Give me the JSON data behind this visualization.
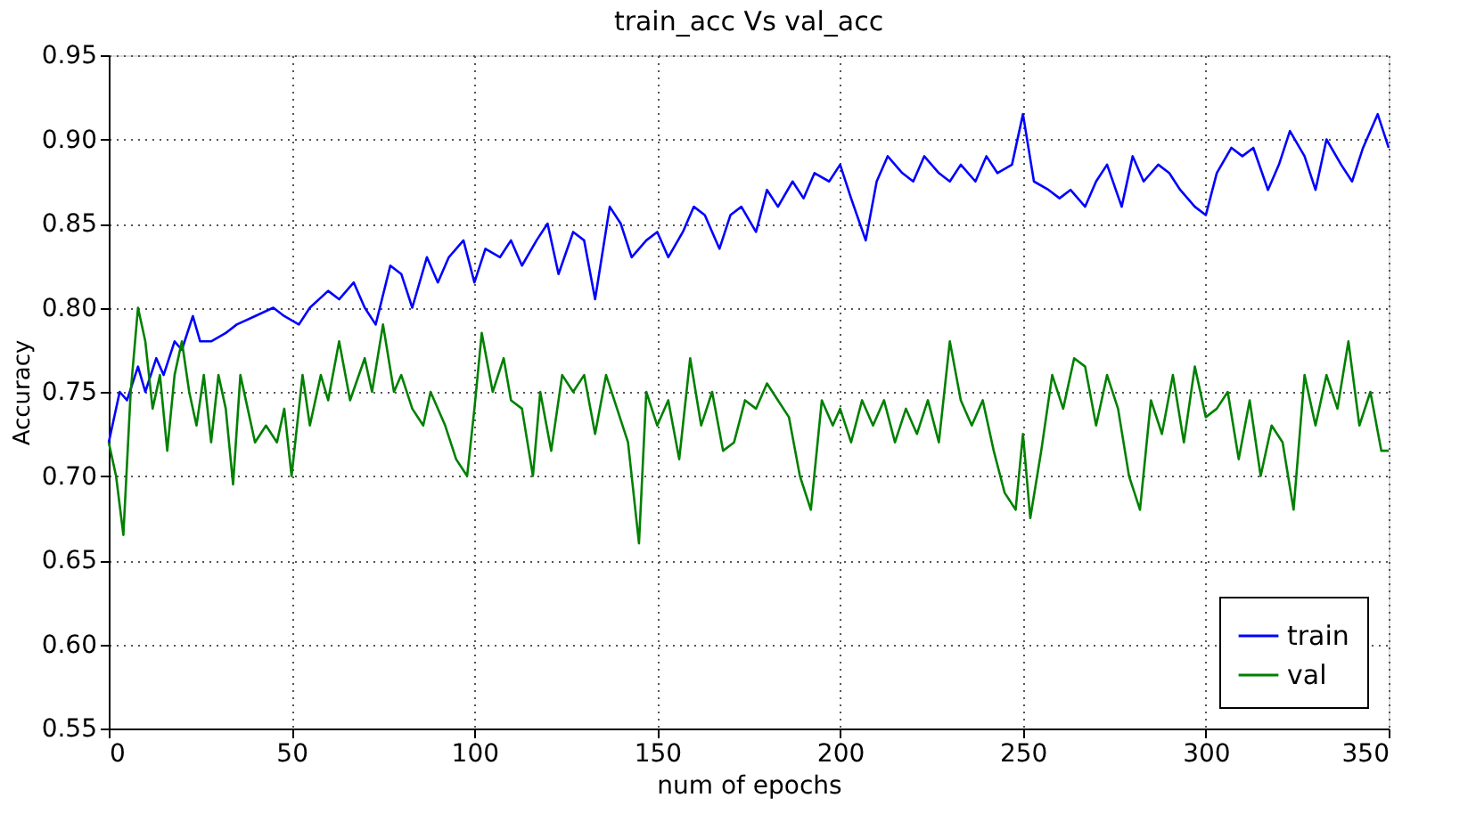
{
  "chart_data": {
    "type": "line",
    "title": "train_acc Vs val_acc",
    "xlabel": "num of epochs",
    "ylabel": "Accuracy",
    "xlim": [
      0,
      350
    ],
    "xticks": [
      0,
      50,
      100,
      150,
      200,
      250,
      300,
      350
    ],
    "ylim": [
      0.55,
      0.95
    ],
    "yticks": [
      0.55,
      {
        "value": 0.6,
        "label": "0.60"
      },
      0.65,
      {
        "value": 0.7,
        "label": "0.70"
      },
      0.75,
      {
        "value": 0.8,
        "label": "0.80"
      },
      0.85,
      {
        "value": 0.9,
        "label": "0.90"
      },
      0.95
    ],
    "grid": true,
    "legend": "bottom right",
    "marker": "none",
    "line_style": "solid",
    "series": [
      {
        "name": "train",
        "color": "#0000ff",
        "x": [
          0,
          3,
          5,
          8,
          10,
          13,
          15,
          18,
          20,
          23,
          25,
          28,
          32,
          35,
          40,
          45,
          48,
          52,
          55,
          60,
          63,
          67,
          70,
          73,
          77,
          80,
          83,
          87,
          90,
          93,
          97,
          100,
          103,
          107,
          110,
          113,
          117,
          120,
          123,
          127,
          130,
          133,
          137,
          140,
          143,
          147,
          150,
          153,
          157,
          160,
          163,
          167,
          170,
          173,
          177,
          180,
          183,
          187,
          190,
          193,
          197,
          200,
          203,
          207,
          210,
          213,
          217,
          220,
          223,
          227,
          230,
          233,
          237,
          240,
          243,
          247,
          250,
          253,
          257,
          260,
          263,
          267,
          270,
          273,
          277,
          280,
          283,
          287,
          290,
          293,
          297,
          300,
          303,
          307,
          310,
          313,
          317,
          320,
          323,
          327,
          330,
          333,
          337,
          340,
          343,
          347,
          350
        ],
        "values": [
          0.72,
          0.75,
          0.745,
          0.765,
          0.75,
          0.77,
          0.76,
          0.78,
          0.775,
          0.795,
          0.78,
          0.78,
          0.785,
          0.79,
          0.795,
          0.8,
          0.795,
          0.79,
          0.8,
          0.81,
          0.805,
          0.815,
          0.8,
          0.79,
          0.825,
          0.82,
          0.8,
          0.83,
          0.815,
          0.83,
          0.84,
          0.815,
          0.835,
          0.83,
          0.84,
          0.825,
          0.84,
          0.85,
          0.82,
          0.845,
          0.84,
          0.805,
          0.86,
          0.85,
          0.83,
          0.84,
          0.845,
          0.83,
          0.845,
          0.86,
          0.855,
          0.835,
          0.855,
          0.86,
          0.845,
          0.87,
          0.86,
          0.875,
          0.865,
          0.88,
          0.875,
          0.885,
          0.865,
          0.84,
          0.875,
          0.89,
          0.88,
          0.875,
          0.89,
          0.88,
          0.875,
          0.885,
          0.875,
          0.89,
          0.88,
          0.885,
          0.915,
          0.875,
          0.87,
          0.865,
          0.87,
          0.86,
          0.875,
          0.885,
          0.86,
          0.89,
          0.875,
          0.885,
          0.88,
          0.87,
          0.86,
          0.855,
          0.88,
          0.895,
          0.89,
          0.895,
          0.87,
          0.885,
          0.905,
          0.89,
          0.87,
          0.9,
          0.885,
          0.875,
          0.895,
          0.915,
          0.895
        ]
      },
      {
        "name": "val",
        "color": "#008000",
        "x": [
          0,
          2,
          4,
          6,
          8,
          10,
          12,
          14,
          16,
          18,
          20,
          22,
          24,
          26,
          28,
          30,
          32,
          34,
          36,
          38,
          40,
          43,
          46,
          48,
          50,
          53,
          55,
          58,
          60,
          63,
          66,
          70,
          72,
          75,
          78,
          80,
          83,
          86,
          88,
          92,
          95,
          98,
          100,
          102,
          105,
          108,
          110,
          113,
          116,
          118,
          121,
          124,
          127,
          130,
          133,
          136,
          139,
          142,
          145,
          147,
          150,
          153,
          156,
          159,
          162,
          165,
          168,
          171,
          174,
          177,
          180,
          183,
          186,
          189,
          192,
          195,
          198,
          200,
          203,
          206,
          209,
          212,
          215,
          218,
          221,
          224,
          227,
          230,
          233,
          236,
          239,
          242,
          245,
          248,
          250,
          252,
          255,
          258,
          261,
          264,
          267,
          270,
          273,
          276,
          279,
          282,
          285,
          288,
          291,
          294,
          297,
          300,
          303,
          306,
          309,
          312,
          315,
          318,
          321,
          324,
          327,
          330,
          333,
          336,
          339,
          342,
          345,
          348,
          350
        ],
        "values": [
          0.72,
          0.7,
          0.665,
          0.75,
          0.8,
          0.78,
          0.74,
          0.76,
          0.715,
          0.76,
          0.78,
          0.75,
          0.73,
          0.76,
          0.72,
          0.76,
          0.74,
          0.695,
          0.76,
          0.74,
          0.72,
          0.73,
          0.72,
          0.74,
          0.7,
          0.76,
          0.73,
          0.76,
          0.745,
          0.78,
          0.745,
          0.77,
          0.75,
          0.79,
          0.75,
          0.76,
          0.74,
          0.73,
          0.75,
          0.73,
          0.71,
          0.7,
          0.74,
          0.785,
          0.75,
          0.77,
          0.745,
          0.74,
          0.7,
          0.75,
          0.715,
          0.76,
          0.75,
          0.76,
          0.725,
          0.76,
          0.74,
          0.72,
          0.66,
          0.75,
          0.73,
          0.745,
          0.71,
          0.77,
          0.73,
          0.75,
          0.715,
          0.72,
          0.745,
          0.74,
          0.755,
          0.745,
          0.735,
          0.7,
          0.68,
          0.745,
          0.73,
          0.74,
          0.72,
          0.745,
          0.73,
          0.745,
          0.72,
          0.74,
          0.725,
          0.745,
          0.72,
          0.78,
          0.745,
          0.73,
          0.745,
          0.715,
          0.69,
          0.68,
          0.725,
          0.675,
          0.715,
          0.76,
          0.74,
          0.77,
          0.765,
          0.73,
          0.76,
          0.74,
          0.7,
          0.68,
          0.745,
          0.725,
          0.76,
          0.72,
          0.765,
          0.735,
          0.74,
          0.75,
          0.71,
          0.745,
          0.7,
          0.73,
          0.72,
          0.68,
          0.76,
          0.73,
          0.76,
          0.74,
          0.78,
          0.73,
          0.75,
          0.715,
          0.715
        ]
      }
    ]
  }
}
